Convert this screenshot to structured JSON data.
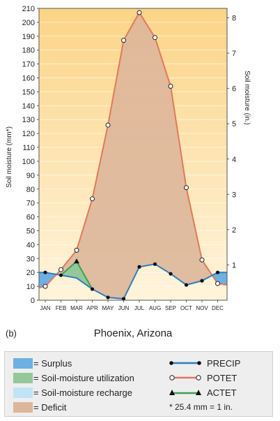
{
  "chart_data": {
    "type": "line",
    "panel_label": "(b)",
    "title": "Phoenix, Arizona",
    "ylabel": "Soil moisture (mm*)",
    "y2label": "Soil moisture (in.)",
    "ylim": [
      0,
      210
    ],
    "yticks": [
      0,
      10,
      20,
      30,
      40,
      50,
      60,
      70,
      80,
      90,
      100,
      110,
      120,
      130,
      140,
      150,
      160,
      170,
      180,
      190,
      200,
      210
    ],
    "y2ticks": [
      1,
      2,
      3,
      4,
      5,
      6,
      7,
      8
    ],
    "categories": [
      "JAN",
      "FEB",
      "MAR",
      "APR",
      "MAY",
      "JUN",
      "JUL",
      "AUG",
      "SEP",
      "OCT",
      "NOV",
      "DEC"
    ],
    "series": [
      {
        "name": "PRECIP",
        "values": [
          20,
          18,
          16,
          8,
          2,
          1,
          24,
          26,
          19,
          11,
          14,
          20
        ]
      },
      {
        "name": "POTET",
        "values": [
          10,
          22,
          36,
          73,
          126,
          187,
          207,
          189,
          154,
          81,
          29,
          12
        ]
      },
      {
        "name": "ACTET",
        "values": [
          null,
          18,
          28,
          8,
          null,
          null,
          null,
          null,
          null,
          null,
          null,
          null
        ]
      }
    ],
    "colors": {
      "surplus": "#6eb0e2",
      "utilization": "#96c79a",
      "recharge": "#bfe4f5",
      "deficit": "#ddb69a",
      "potet_line": "#e4785a",
      "precip_line": "#2a7fc1",
      "actet_line": "#3aa24a",
      "background_top": "#fbd487",
      "background_bottom": "#fff4dc"
    }
  },
  "legend": {
    "surplus": "= Surplus",
    "utilization": "= Soil-moisture utilization",
    "recharge": "= Soil-moisture recharge",
    "deficit": "= Deficit",
    "precip": "PRECIP",
    "potet": "POTET",
    "actet": "ACTET",
    "note": "* 25.4 mm = 1 in."
  }
}
